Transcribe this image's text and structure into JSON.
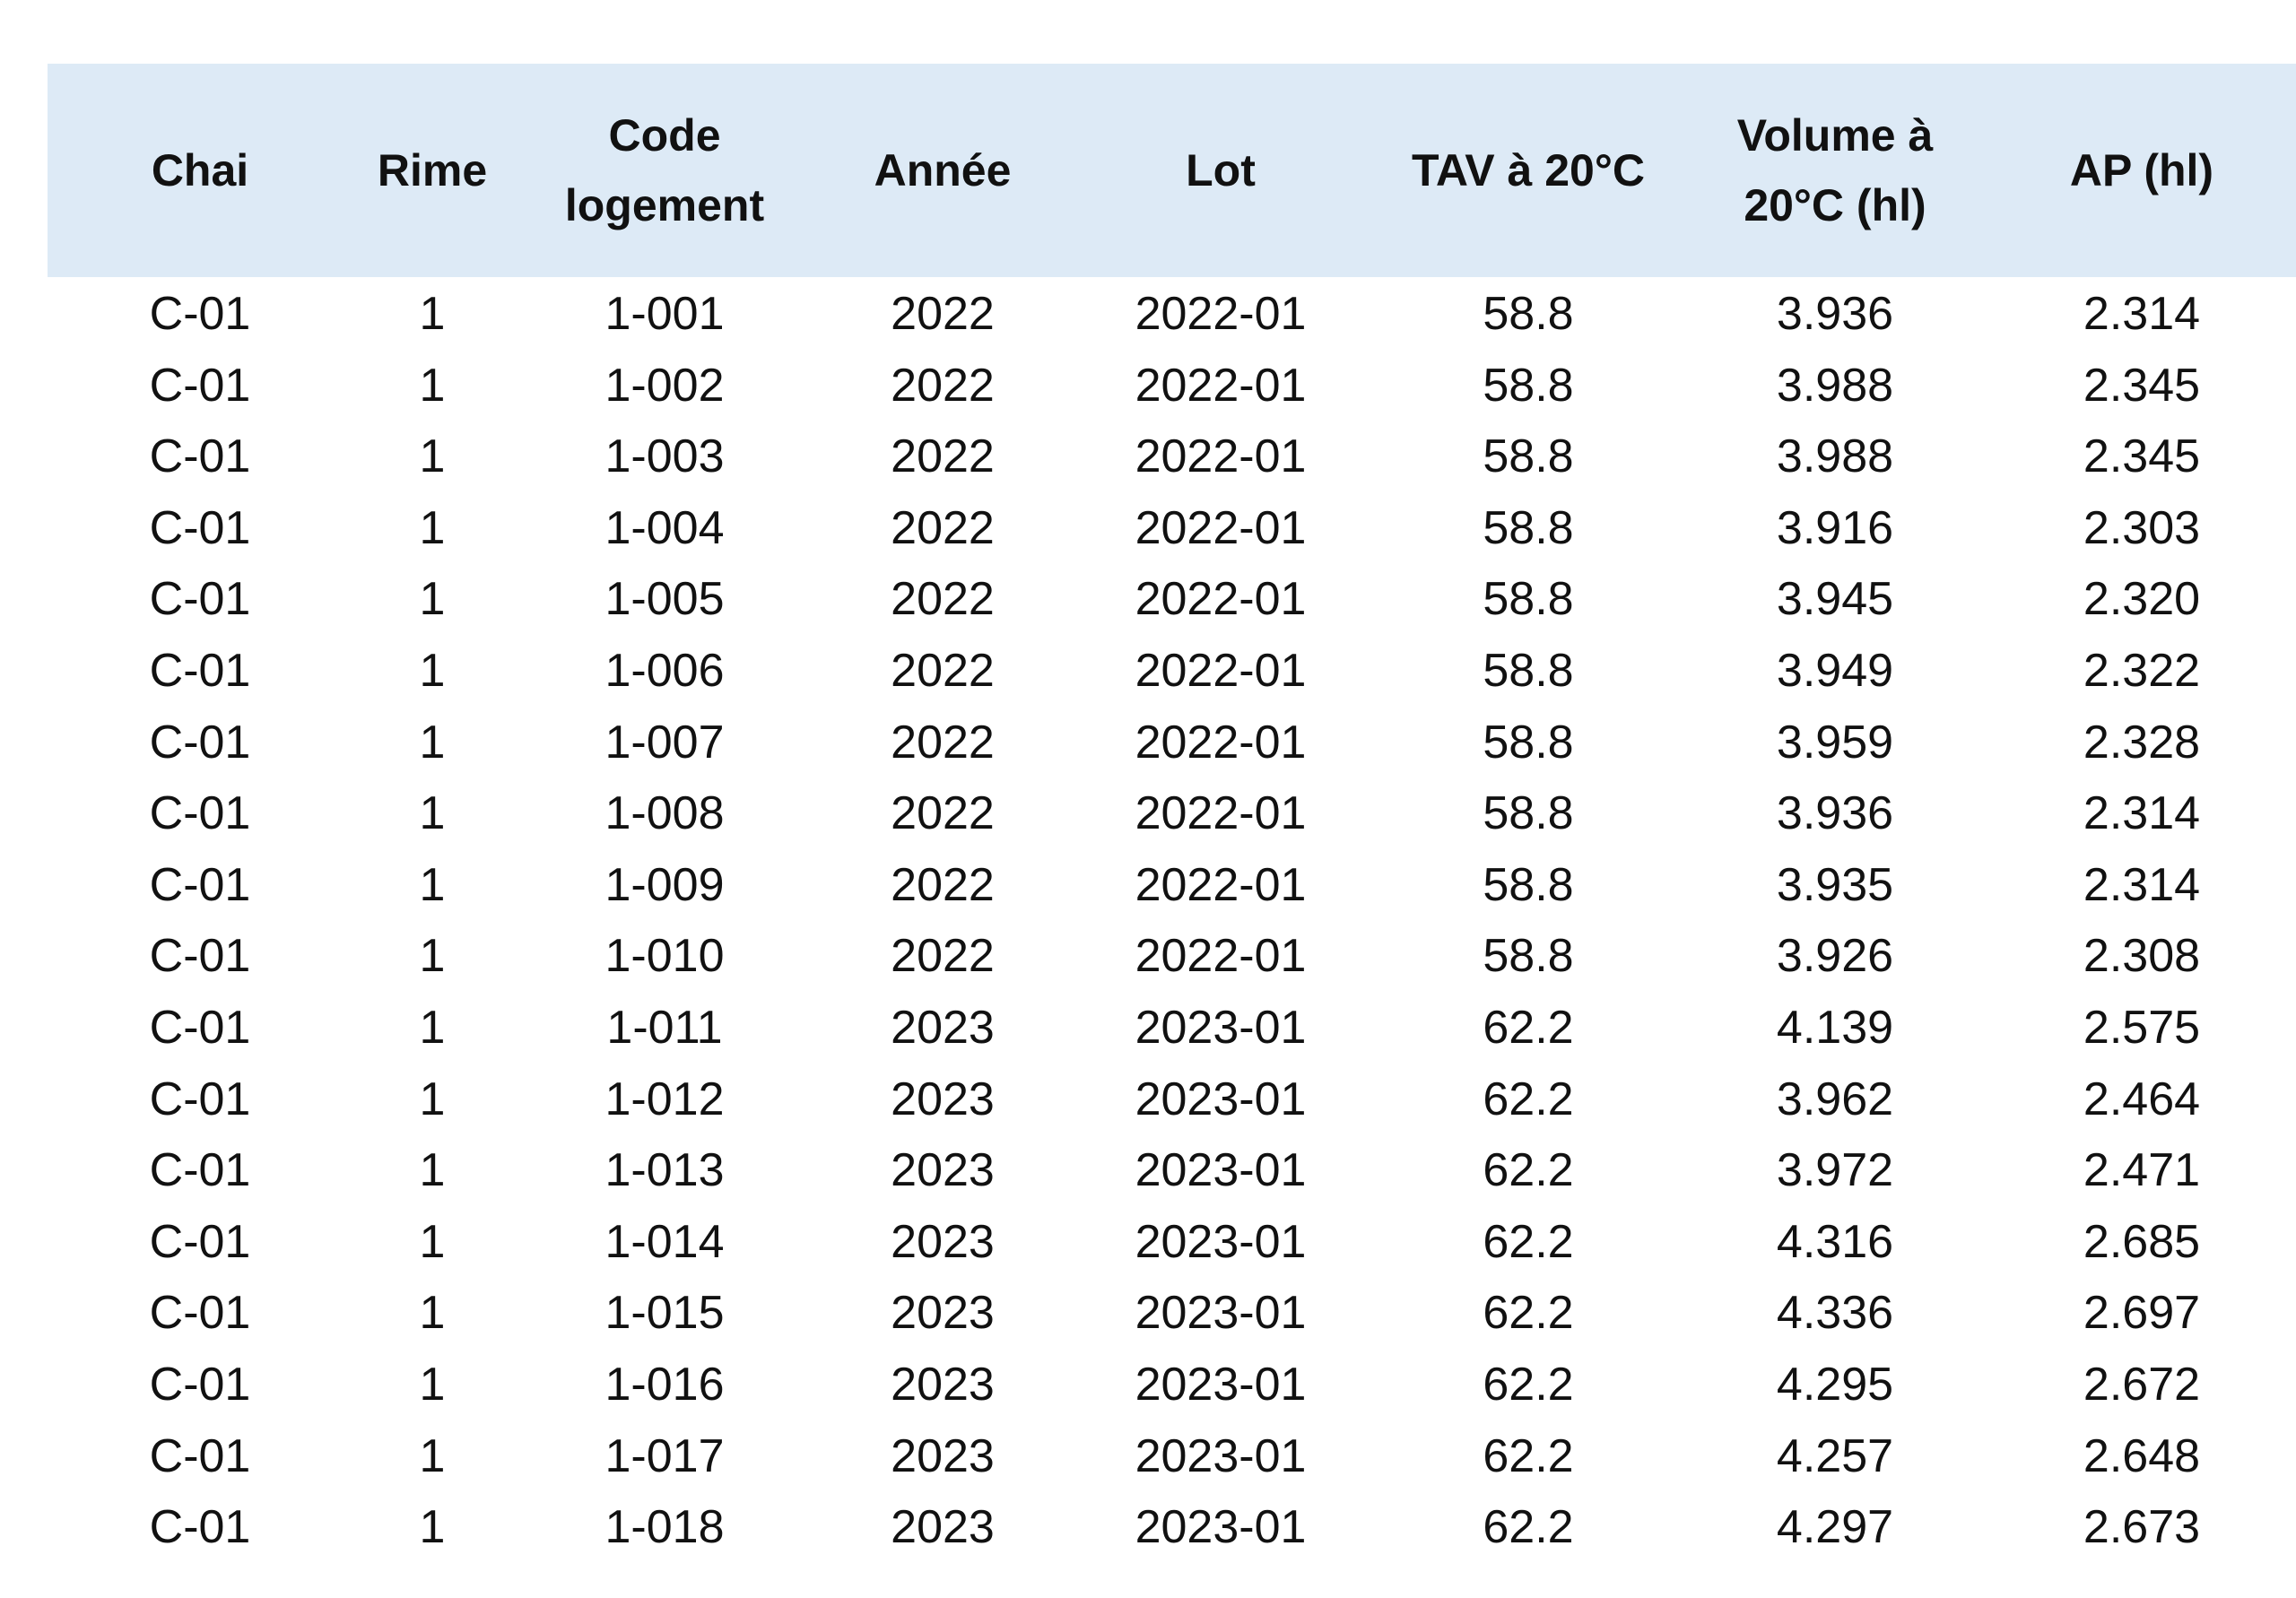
{
  "table": {
    "headers": [
      "Chai",
      "Rime",
      "Code logement",
      "Année",
      "Lot",
      "TAV à 20°C",
      "Volume à 20°C (hl)",
      "AP (hl)"
    ],
    "rows": [
      [
        "C-01",
        "1",
        "1-001",
        "2022",
        "2022-01",
        "58.8",
        "3.936",
        "2.314"
      ],
      [
        "C-01",
        "1",
        "1-002",
        "2022",
        "2022-01",
        "58.8",
        "3.988",
        "2.345"
      ],
      [
        "C-01",
        "1",
        "1-003",
        "2022",
        "2022-01",
        "58.8",
        "3.988",
        "2.345"
      ],
      [
        "C-01",
        "1",
        "1-004",
        "2022",
        "2022-01",
        "58.8",
        "3.916",
        "2.303"
      ],
      [
        "C-01",
        "1",
        "1-005",
        "2022",
        "2022-01",
        "58.8",
        "3.945",
        "2.320"
      ],
      [
        "C-01",
        "1",
        "1-006",
        "2022",
        "2022-01",
        "58.8",
        "3.949",
        "2.322"
      ],
      [
        "C-01",
        "1",
        "1-007",
        "2022",
        "2022-01",
        "58.8",
        "3.959",
        "2.328"
      ],
      [
        "C-01",
        "1",
        "1-008",
        "2022",
        "2022-01",
        "58.8",
        "3.936",
        "2.314"
      ],
      [
        "C-01",
        "1",
        "1-009",
        "2022",
        "2022-01",
        "58.8",
        "3.935",
        "2.314"
      ],
      [
        "C-01",
        "1",
        "1-010",
        "2022",
        "2022-01",
        "58.8",
        "3.926",
        "2.308"
      ],
      [
        "C-01",
        "1",
        "1-011",
        "2023",
        "2023-01",
        "62.2",
        "4.139",
        "2.575"
      ],
      [
        "C-01",
        "1",
        "1-012",
        "2023",
        "2023-01",
        "62.2",
        "3.962",
        "2.464"
      ],
      [
        "C-01",
        "1",
        "1-013",
        "2023",
        "2023-01",
        "62.2",
        "3.972",
        "2.471"
      ],
      [
        "C-01",
        "1",
        "1-014",
        "2023",
        "2023-01",
        "62.2",
        "4.316",
        "2.685"
      ],
      [
        "C-01",
        "1",
        "1-015",
        "2023",
        "2023-01",
        "62.2",
        "4.336",
        "2.697"
      ],
      [
        "C-01",
        "1",
        "1-016",
        "2023",
        "2023-01",
        "62.2",
        "4.295",
        "2.672"
      ],
      [
        "C-01",
        "1",
        "1-017",
        "2023",
        "2023-01",
        "62.2",
        "4.257",
        "2.648"
      ],
      [
        "C-01",
        "1",
        "1-018",
        "2023",
        "2023-01",
        "62.2",
        "4.297",
        "2.673"
      ]
    ]
  }
}
